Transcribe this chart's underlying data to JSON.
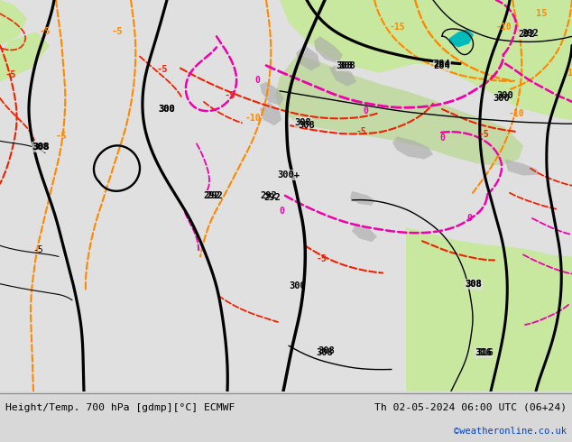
{
  "title_left": "Height/Temp. 700 hPa [gdmp][°C] ECMWF",
  "title_right": "Th 02-05-2024 06:00 UTC (06+24)",
  "watermark": "©weatheronline.co.uk",
  "fig_width": 6.34,
  "fig_height": 4.9,
  "dpi": 100,
  "ocean_color": "#e8e8e8",
  "land_color": "#c8e8a0",
  "land2_color": "#b8d890",
  "gray_color": "#b0b0b0",
  "bottom_bg": "#d8d8d8",
  "black_lw": 2.0,
  "thin_black_lw": 1.0,
  "colored_lw": 1.5
}
